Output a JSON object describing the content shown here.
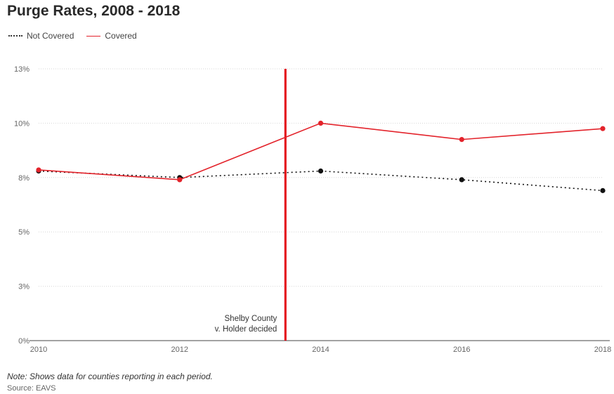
{
  "chart_data": {
    "type": "line",
    "title": "Purge Rates, 2008 - 2018",
    "x": [
      2010,
      2012,
      2014,
      2016,
      2018
    ],
    "xlim": [
      2010,
      2018
    ],
    "ylim": [
      0,
      12.5
    ],
    "y_ticks": [
      0,
      2.5,
      5,
      7.5,
      10,
      12.5
    ],
    "y_tick_labels": [
      "0%",
      "3%",
      "5%",
      "8%",
      "10%",
      "13%"
    ],
    "x_tick_labels": [
      "2010",
      "2012",
      "2014",
      "2016",
      "2018"
    ],
    "grid": "horizontal",
    "legend_position": "top-left",
    "series": [
      {
        "name": "Not Covered",
        "style": "dotted",
        "color": "#111111",
        "values": [
          7.8,
          7.5,
          7.8,
          7.4,
          6.9
        ]
      },
      {
        "name": "Covered",
        "style": "solid",
        "color": "#e3232b",
        "values": [
          7.85,
          7.4,
          10.0,
          9.25,
          9.75
        ]
      }
    ],
    "annotation": {
      "x": 2013.5,
      "label_lines": [
        "Shelby County",
        "v. Holder decided"
      ],
      "color": "#e3000f"
    }
  },
  "note": "Note: Shows data for counties reporting in each period.",
  "source": "Source: EAVS"
}
